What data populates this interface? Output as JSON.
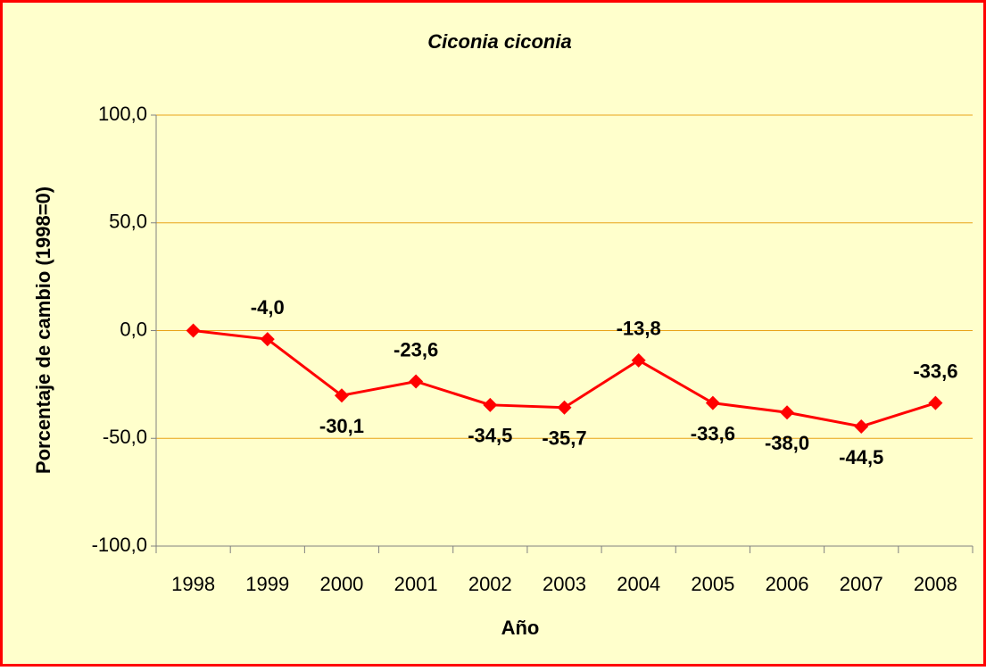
{
  "chart_data": {
    "type": "line",
    "title": "Ciconia ciconia",
    "x_label": "Año",
    "y_label": "Porcentaje de cambio (1998=0)",
    "categories": [
      "1998",
      "1999",
      "2000",
      "2001",
      "2002",
      "2003",
      "2004",
      "2005",
      "2006",
      "2007",
      "2008"
    ],
    "series": [
      {
        "name": "Ciconia ciconia",
        "color": "#ff0000",
        "values": [
          0,
          -4.0,
          -30.1,
          -23.6,
          -34.5,
          -35.7,
          -13.8,
          -33.6,
          -38.0,
          -44.5,
          -33.6
        ],
        "value_labels": [
          null,
          "-4,0",
          "-30,1",
          "-23,6",
          "-34,5",
          "-35,7",
          "-13,8",
          "-33,6",
          "-38,0",
          "-44,5",
          "-33,6"
        ]
      }
    ],
    "ylim": [
      -100,
      100
    ],
    "yticks": [
      {
        "value": -100,
        "label": "-100,0"
      },
      {
        "value": -50,
        "label": "-50,0"
      },
      {
        "value": 0,
        "label": "0,0"
      },
      {
        "value": 50,
        "label": "50,0"
      },
      {
        "value": 100,
        "label": "100,0"
      }
    ],
    "grid": true
  }
}
